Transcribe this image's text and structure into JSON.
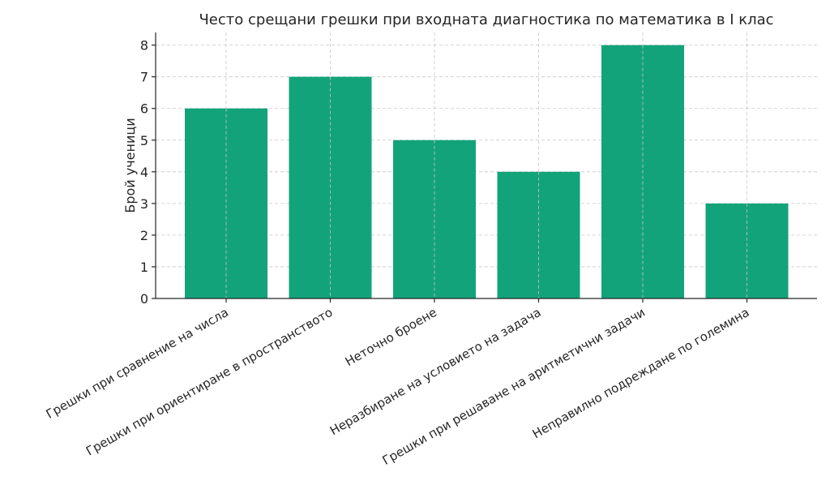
{
  "chart_data": {
    "type": "bar",
    "title": "Често срещани грешки при входната диагностика по математика в I клас",
    "xlabel": "",
    "ylabel": "Брой ученици",
    "categories": [
      "Грешки при сравнение на числа",
      "Грешки при ориентиране в пространството",
      "Неточно броене",
      "Неразбиране на условието на задача",
      "Грешки при решаване на аритметични задачи",
      "Неправилно подреждане по големина"
    ],
    "values": [
      6,
      7,
      5,
      4,
      8,
      3
    ],
    "ylim": [
      0,
      8.4
    ],
    "yticks": [
      0,
      1,
      2,
      3,
      4,
      5,
      6,
      7,
      8
    ],
    "grid": true,
    "bar_color": "#13a37a"
  }
}
